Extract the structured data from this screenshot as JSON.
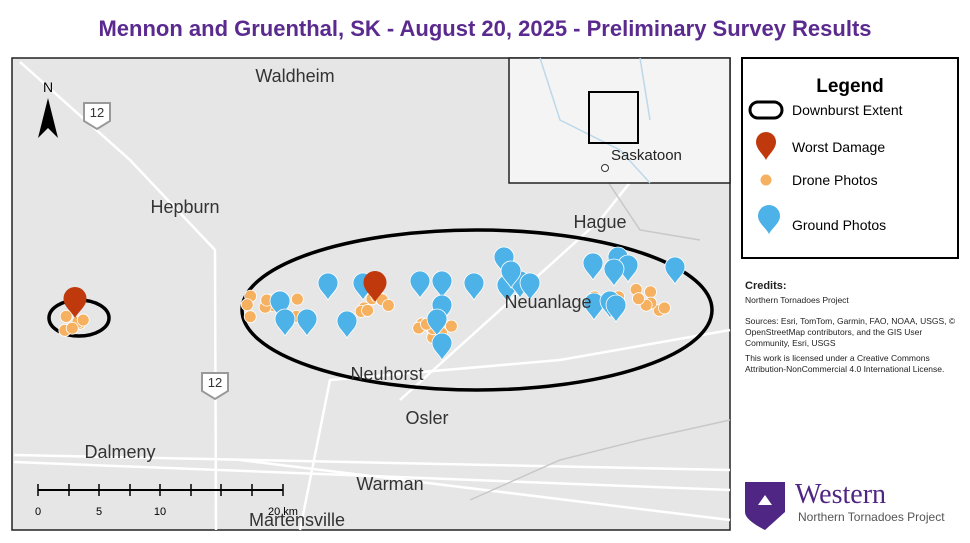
{
  "title": "Mennon and Gruenthal, SK - August 20, 2025 - Preliminary Survey Results",
  "map": {
    "places": [
      "Waldheim",
      "Hepburn",
      "Hague",
      "Neuanlage",
      "Neuhorst",
      "Osler",
      "Dalmeny",
      "Warman",
      "Martensville"
    ],
    "highway_shields": [
      "12",
      "12"
    ],
    "north_arrow": "N",
    "scale_bar": [
      "0",
      "5",
      "10",
      "20 km"
    ],
    "inset_place": "Saskatoon"
  },
  "legend": {
    "title": "Legend",
    "items": [
      "Downburst Extent",
      "Worst Damage",
      "Drone Photos",
      "Ground Photos"
    ]
  },
  "credits": {
    "heading": "Credits:",
    "lines": [
      "Northern Tornadoes Project",
      "Sources: Esri, TomTom, Garmin, FAO, NOAA, USGS, © OpenStreetMap contributors, and the GIS User Community, Esri, USGS",
      "This work is licensed under a Creative Commons Attribution-NonCommercial 4.0 International License."
    ]
  },
  "logo": {
    "name": "Western",
    "subtitle": "Northern Tornadoes Project"
  }
}
